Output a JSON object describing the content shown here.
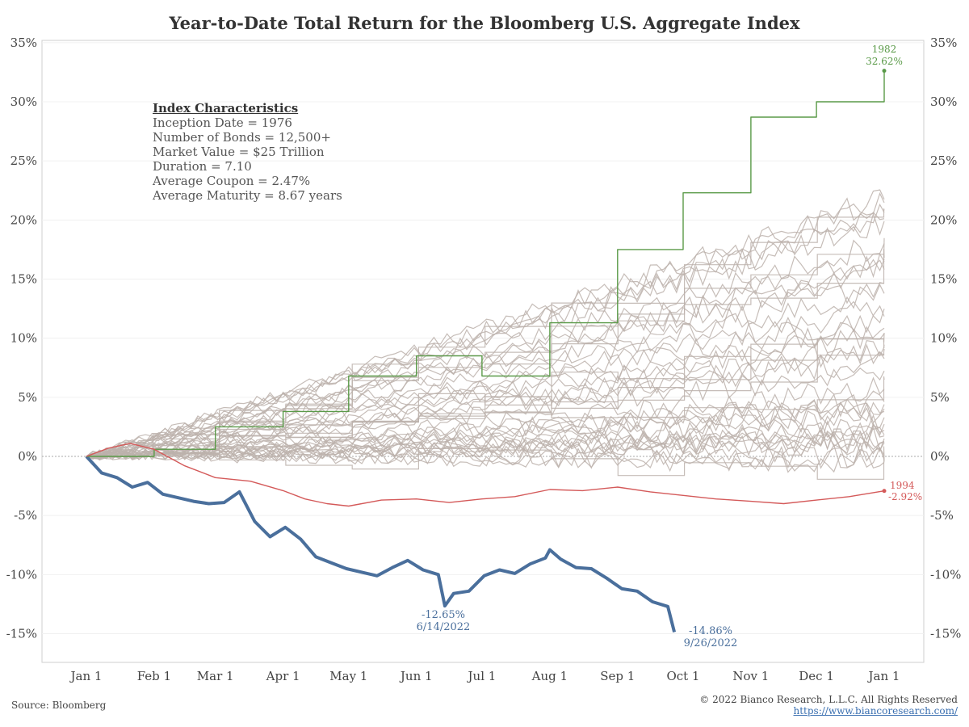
{
  "chart_data": {
    "type": "line",
    "title": "Year-to-Date Total Return for the Bloomberg U.S. Aggregate Index",
    "xlabel": "",
    "ylabel": "",
    "ylim": [
      -17,
      35
    ],
    "y_ticks": [
      35,
      30,
      25,
      20,
      15,
      10,
      5,
      0,
      -5,
      -10,
      -15
    ],
    "y_tick_labels": [
      "35%",
      "30%",
      "25%",
      "20%",
      "15%",
      "10%",
      "5%",
      "0%",
      "-5%",
      "-10%",
      "-15%"
    ],
    "x_tick_labels": [
      "Jan 1",
      "Feb 1",
      "Mar 1",
      "Apr 1",
      "May 1",
      "Jun 1",
      "Jul 1",
      "Aug 1",
      "Sep 1",
      "Oct 1",
      "Nov 1",
      "Dec 1",
      "Jan 1"
    ],
    "x_tick_days": [
      0,
      31,
      59,
      90,
      120,
      151,
      181,
      212,
      243,
      273,
      304,
      334,
      365
    ],
    "grid": "horizontal",
    "colors": {
      "year_2022": "#4a6f9c",
      "year_1982": "#5a9a48",
      "year_1994": "#d45a5a",
      "other_years": "#bcb2ac",
      "zero_line": "#aaaaaa"
    },
    "series": [
      {
        "key": "2022",
        "day": [
          0,
          7,
          14,
          21,
          28,
          35,
          42,
          49,
          56,
          63,
          70,
          77,
          84,
          91,
          98,
          105,
          112,
          119,
          126,
          133,
          140,
          147,
          154,
          161,
          164,
          168,
          175,
          182,
          189,
          196,
          203,
          210,
          212,
          217,
          224,
          231,
          238,
          245,
          252,
          259,
          266,
          269
        ],
        "value": [
          0,
          -1.4,
          -1.8,
          -2.6,
          -2.2,
          -3.2,
          -3.5,
          -3.8,
          -4.0,
          -3.9,
          -3.0,
          -5.5,
          -6.8,
          -6.0,
          -7.0,
          -8.5,
          -9.0,
          -9.5,
          -9.8,
          -10.1,
          -9.4,
          -8.8,
          -9.6,
          -10.0,
          -12.65,
          -11.6,
          -11.4,
          -10.1,
          -9.6,
          -9.9,
          -9.1,
          -8.6,
          -7.9,
          -8.7,
          -9.4,
          -9.5,
          -10.3,
          -11.2,
          -11.4,
          -12.3,
          -12.7,
          -14.86
        ]
      },
      {
        "key": "1982",
        "day": [
          0,
          31,
          31,
          59,
          59,
          90,
          90,
          120,
          120,
          151,
          151,
          181,
          181,
          212,
          212,
          243,
          243,
          273,
          273,
          304,
          304,
          334,
          334,
          365,
          365
        ],
        "value": [
          0,
          0,
          0.6,
          0.6,
          2.5,
          2.5,
          3.8,
          3.8,
          6.8,
          6.8,
          8.5,
          8.5,
          6.8,
          6.8,
          11.3,
          11.3,
          17.5,
          17.5,
          22.3,
          22.3,
          28.7,
          28.7,
          30.0,
          30.0,
          32.62
        ]
      },
      {
        "key": "1994",
        "day": [
          0,
          10,
          20,
          31,
          45,
          59,
          75,
          90,
          100,
          110,
          120,
          135,
          151,
          166,
          181,
          196,
          212,
          227,
          243,
          258,
          273,
          288,
          304,
          319,
          334,
          349,
          365
        ],
        "value": [
          0,
          0.7,
          1.1,
          0.6,
          -0.8,
          -1.8,
          -2.1,
          -2.9,
          -3.6,
          -4.0,
          -4.2,
          -3.7,
          -3.6,
          -3.9,
          -3.6,
          -3.4,
          -2.8,
          -2.9,
          -2.6,
          -3.0,
          -3.3,
          -3.6,
          -3.8,
          -4.0,
          -3.7,
          -3.4,
          -2.92
        ]
      }
    ],
    "other_years": {
      "count": 44,
      "final_range": [
        -0.5,
        22
      ],
      "note_points": "gray background paths show other calendar years"
    },
    "annotations": [
      {
        "series": "2022",
        "label": "-12.65%",
        "sublabel": "6/14/2022"
      },
      {
        "series": "2022",
        "label": "-14.86%",
        "sublabel": "9/26/2022"
      },
      {
        "series": "1982",
        "label": "1982",
        "sublabel": "32.62%"
      },
      {
        "series": "1994",
        "label": "1994",
        "sublabel": "-2.92%"
      }
    ]
  },
  "index_box": {
    "heading": "Index Characteristics",
    "lines": [
      "Inception Date = 1976",
      "Number of Bonds = 12,500+",
      "Market Value = $25 Trillion",
      "Duration = 7.10",
      "Average Coupon = 2.47%",
      "Average Maturity = 8.67 years"
    ]
  },
  "footer": {
    "source": "Source: Bloomberg",
    "copyright": "© 2022 Bianco Research, L.L.C. All Rights Reserved",
    "url": "https://www.biancoresearch.com/"
  }
}
